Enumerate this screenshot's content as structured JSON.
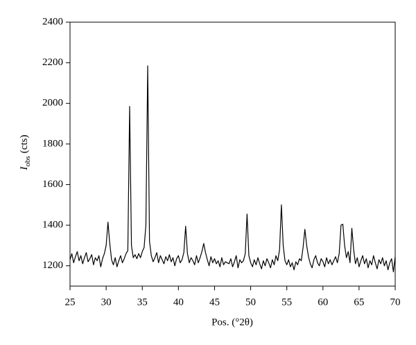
{
  "chart_data": {
    "type": "line",
    "x_label": "Pos. (°2θ)",
    "y_label": {
      "symbol": "I",
      "subscript": "obs",
      "unit": "(cts)"
    },
    "x": [
      25,
      25.25,
      25.5,
      25.75,
      26,
      26.25,
      26.5,
      26.75,
      27,
      27.25,
      27.5,
      27.75,
      28,
      28.25,
      28.5,
      28.75,
      29,
      29.25,
      29.5,
      29.75,
      30,
      30.25,
      30.5,
      30.75,
      31,
      31.25,
      31.5,
      31.75,
      32,
      32.25,
      32.5,
      32.75,
      33,
      33.25,
      33.5,
      33.75,
      34,
      34.25,
      34.5,
      34.75,
      35,
      35.25,
      35.5,
      35.75,
      36,
      36.25,
      36.5,
      36.75,
      37,
      37.25,
      37.5,
      37.75,
      38,
      38.25,
      38.5,
      38.75,
      39,
      39.25,
      39.5,
      39.75,
      40,
      40.25,
      40.5,
      40.75,
      41,
      41.25,
      41.5,
      41.75,
      42,
      42.25,
      42.5,
      42.75,
      43,
      43.25,
      43.5,
      43.75,
      44,
      44.25,
      44.5,
      44.75,
      45,
      45.25,
      45.5,
      45.75,
      46,
      46.25,
      46.5,
      46.75,
      47,
      47.25,
      47.5,
      47.75,
      48,
      48.25,
      48.5,
      48.75,
      49,
      49.25,
      49.5,
      49.75,
      50,
      50.25,
      50.5,
      50.75,
      51,
      51.25,
      51.5,
      51.75,
      52,
      52.25,
      52.5,
      52.75,
      53,
      53.25,
      53.5,
      53.75,
      54,
      54.25,
      54.5,
      54.75,
      55,
      55.25,
      55.5,
      55.75,
      56,
      56.25,
      56.5,
      56.75,
      57,
      57.25,
      57.5,
      57.75,
      58,
      58.25,
      58.5,
      58.75,
      59,
      59.25,
      59.5,
      59.75,
      60,
      60.25,
      60.5,
      60.75,
      61,
      61.25,
      61.5,
      61.75,
      62,
      62.25,
      62.5,
      62.75,
      63,
      63.25,
      63.5,
      63.75,
      64,
      64.25,
      64.5,
      64.75,
      65,
      65.25,
      65.5,
      65.75,
      66,
      66.25,
      66.5,
      66.75,
      67,
      67.25,
      67.5,
      67.75,
      68,
      68.25,
      68.5,
      68.75,
      69,
      69.25,
      69.5,
      69.75,
      70
    ],
    "series": [
      {
        "color": "#000000",
        "values": [
          1230,
          1260,
          1215,
          1245,
          1270,
          1225,
          1250,
          1210,
          1240,
          1265,
          1220,
          1235,
          1255,
          1205,
          1240,
          1225,
          1250,
          1195,
          1235,
          1260,
          1300,
          1415,
          1310,
          1230,
          1205,
          1240,
          1195,
          1225,
          1250,
          1215,
          1235,
          1260,
          1275,
          1985,
          1300,
          1240,
          1255,
          1235,
          1260,
          1240,
          1270,
          1290,
          1400,
          2185,
          1320,
          1250,
          1220,
          1240,
          1265,
          1215,
          1250,
          1230,
          1210,
          1245,
          1225,
          1255,
          1220,
          1240,
          1200,
          1235,
          1250,
          1215,
          1230,
          1265,
          1395,
          1260,
          1215,
          1240,
          1225,
          1205,
          1250,
          1215,
          1240,
          1270,
          1310,
          1265,
          1230,
          1200,
          1245,
          1215,
          1235,
          1210,
          1225,
          1195,
          1240,
          1205,
          1220,
          1215,
          1210,
          1235,
          1195,
          1220,
          1250,
          1190,
          1230,
          1215,
          1225,
          1260,
          1455,
          1250,
          1215,
          1195,
          1230,
          1205,
          1240,
          1210,
          1185,
          1225,
          1200,
          1235,
          1215,
          1190,
          1230,
          1205,
          1250,
          1225,
          1280,
          1500,
          1300,
          1225,
          1205,
          1230,
          1195,
          1215,
          1180,
          1220,
          1205,
          1235,
          1225,
          1290,
          1380,
          1300,
          1245,
          1210,
          1190,
          1230,
          1250,
          1215,
          1200,
          1235,
          1220,
          1195,
          1240,
          1210,
          1230,
          1205,
          1225,
          1245,
          1215,
          1260,
          1400,
          1405,
          1300,
          1240,
          1270,
          1215,
          1385,
          1280,
          1210,
          1240,
          1195,
          1225,
          1250,
          1210,
          1235,
          1190,
          1225,
          1205,
          1250,
          1215,
          1185,
          1230,
          1210,
          1240,
          1200,
          1225,
          1180,
          1215,
          1235,
          1170,
          1245
        ]
      }
    ],
    "xlim": [
      25,
      70
    ],
    "xticks": [
      25,
      30,
      35,
      40,
      45,
      50,
      55,
      60,
      65,
      70
    ],
    "ylim": [
      1100,
      2400
    ],
    "yticks": [
      1200,
      1400,
      1600,
      1800,
      2000,
      2200,
      2400
    ]
  }
}
